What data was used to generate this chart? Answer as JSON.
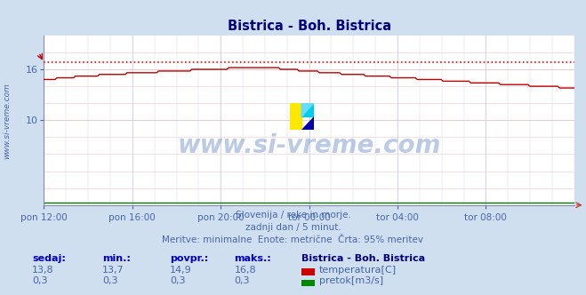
{
  "title": "Bistrica - Boh. Bistrica",
  "title_color": "#000080",
  "bg_color": "#d0dff0",
  "plot_bg_color": "#ffffff",
  "grid_color_h": "#e8b8b8",
  "grid_color_v": "#c8c8d8",
  "axis_color": "#8888aa",
  "tick_color": "#4466aa",
  "text_color": "#4466aa",
  "watermark_text": "www.si-vreme.com",
  "watermark_color": "#2255aa",
  "subtitle_lines": [
    "Slovenija / reke in morje.",
    "zadnji dan / 5 minut.",
    "Meritve: minimalne  Enote: metrične  Črta: 95% meritev"
  ],
  "ylabel_text": "www.si-vreme.com",
  "ylabel_color": "#4466aa",
  "xticklabels": [
    "pon 12:00",
    "pon 16:00",
    "pon 20:00",
    "tor 00:00",
    "tor 04:00",
    "tor 08:00"
  ],
  "ylim": [
    0,
    20
  ],
  "yticks": [
    10,
    16
  ],
  "n_points": 288,
  "temp_color": "#bb0000",
  "flow_color": "#007700",
  "max_line_color": "#ff0000",
  "max_temp": 16.8,
  "sedaj_label": "sedaj:",
  "min_label": "min.:",
  "povpr_label": "povpr.:",
  "maks_label": "maks.:",
  "station_label": "Bistrica - Boh. Bistrica",
  "temp_label": "temperatura[C]",
  "flow_label": "pretok[m3/s]",
  "temp_sedaj": "13,8",
  "temp_min": "13,7",
  "temp_povpr": "14,9",
  "temp_maks": "16,8",
  "flow_sedaj": "0,3",
  "flow_min": "0,3",
  "flow_povpr": "0,3",
  "flow_maks": "0,3"
}
